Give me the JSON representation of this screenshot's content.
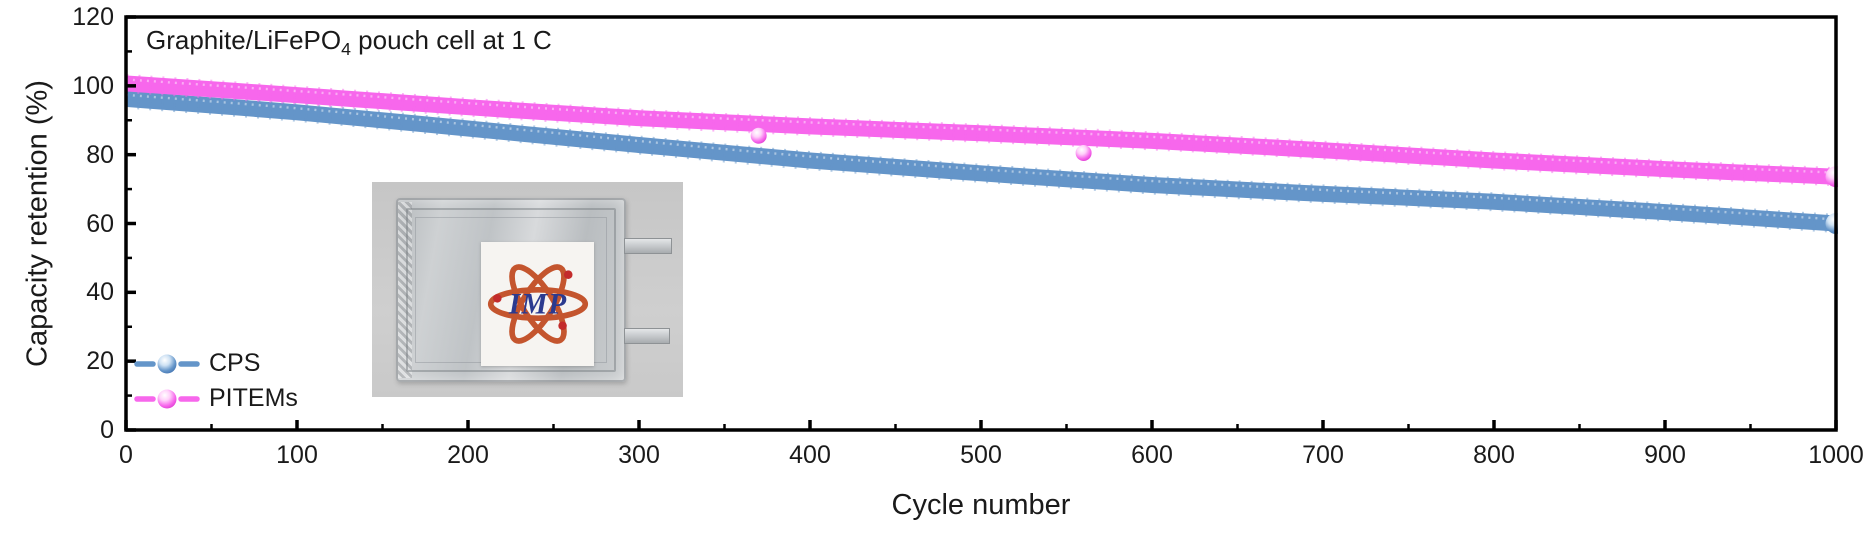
{
  "figure": {
    "title_pre": "Graphite/LiFePO",
    "title_sub": "4",
    "title_post": " pouch cell at 1 C"
  },
  "inset": {
    "description": "photo of a silver pouch cell with IMP logo label and two metal tabs",
    "logo_text": "IMP"
  },
  "chart_data": {
    "type": "line",
    "title": "Graphite/LiFePO4 pouch cell at 1 C",
    "xlabel": "Cycle number",
    "ylabel": "Capacity retention (%)",
    "xlim": [
      0,
      1000
    ],
    "ylim": [
      0,
      120
    ],
    "x_ticks": [
      0,
      100,
      200,
      300,
      400,
      500,
      600,
      700,
      800,
      900,
      1000
    ],
    "y_ticks": [
      0,
      20,
      40,
      60,
      80,
      100,
      120
    ],
    "x_minor_step": 50,
    "y_minor_step": 10,
    "grid": false,
    "legend_position": "lower-left",
    "series": [
      {
        "name": "CPS",
        "color": "#6495c9",
        "color_light": "#cfe2f4",
        "color_dark": "#3f6fae",
        "x": [
          0,
          100,
          200,
          300,
          400,
          500,
          600,
          700,
          800,
          900,
          1000
        ],
        "y": [
          96.2,
          92.3,
          87.6,
          82.8,
          78.3,
          74.6,
          71.2,
          68.6,
          66.3,
          63.3,
          60.0
        ]
      },
      {
        "name": "PITEMs",
        "color": "#f767ec",
        "color_light": "#ffd1fa",
        "color_dark": "#d936cc",
        "x": [
          0,
          100,
          200,
          300,
          400,
          500,
          600,
          700,
          800,
          900,
          1000
        ],
        "y": [
          100.7,
          97.3,
          93.8,
          90.6,
          88.2,
          86.2,
          84.0,
          81.3,
          78.3,
          75.8,
          73.6
        ],
        "outliers": [
          {
            "x": 370,
            "y": 85.5
          },
          {
            "x": 560,
            "y": 80.5
          }
        ]
      }
    ]
  }
}
